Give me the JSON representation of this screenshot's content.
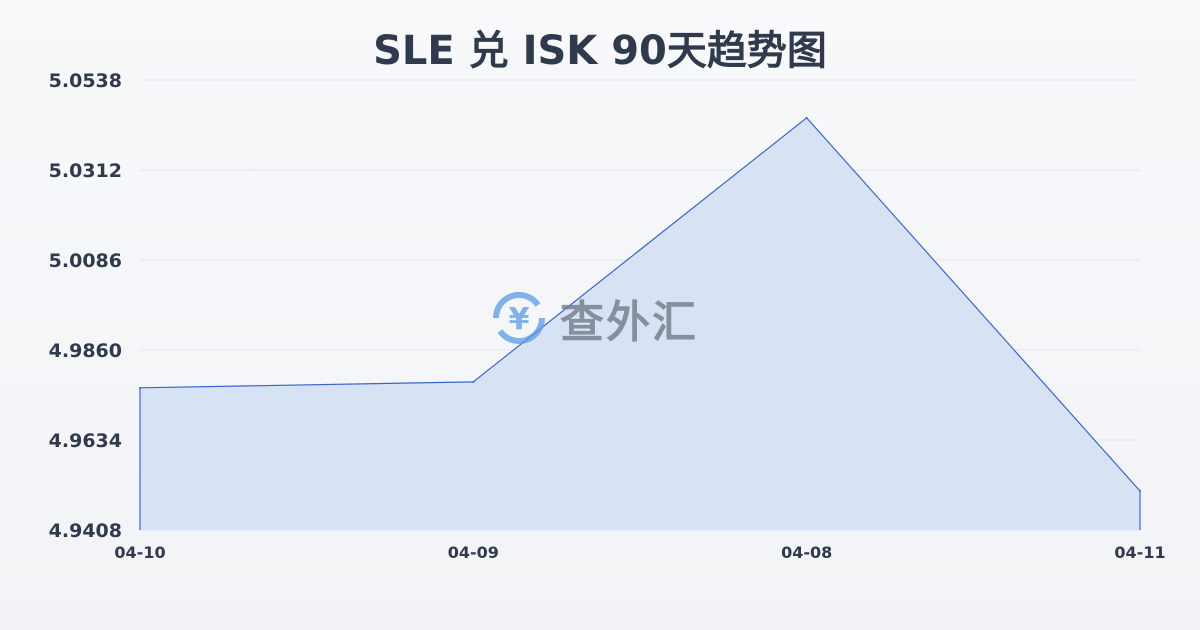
{
  "chart_data": {
    "type": "area",
    "title": "SLE 兑 ISK 90天趋势图",
    "categories": [
      "04-10",
      "04-09",
      "04-08",
      "04-11"
    ],
    "values": [
      4.9765,
      4.978,
      5.0443,
      4.9506
    ],
    "yticks": [
      "5.0538",
      "5.0312",
      "5.0086",
      "4.9860",
      "4.9634",
      "4.9408"
    ],
    "ylim": [
      4.9408,
      5.0538
    ],
    "grid": true,
    "line_color": "#3a66c8",
    "fill_color": "#d8e2f5"
  },
  "watermark": {
    "text": "查外汇",
    "icon": "yen-exchange-icon"
  }
}
